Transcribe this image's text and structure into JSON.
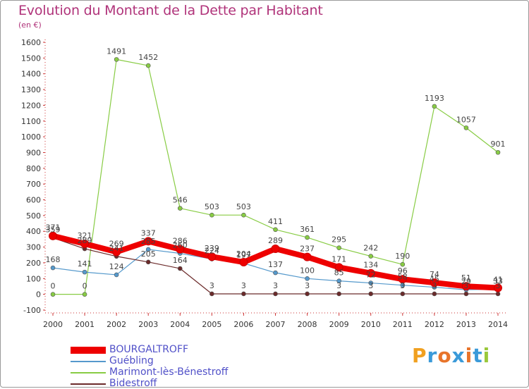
{
  "title": "Evolution du Montant de la Dette par Habitant",
  "subtitle": "(en €)",
  "logo": {
    "text": "Proxiti",
    "colors": [
      "#f0a020",
      "#3a9ad9",
      "#e8742a",
      "#3a9ad9",
      "#e8742a",
      "#3a9ad9",
      "#9ac83a"
    ]
  },
  "chart_data": {
    "type": "line",
    "title": "Evolution du Montant de la Dette par Habitant",
    "ylabel": "(en €)",
    "x": [
      "2000",
      "2001",
      "2002",
      "2003",
      "2004",
      "2005",
      "2006",
      "2007",
      "2008",
      "2009",
      "2010",
      "2011",
      "2012",
      "2013",
      "2014"
    ],
    "ylim": [
      -100,
      1600
    ],
    "yticks": [
      -100,
      0,
      100,
      200,
      300,
      400,
      500,
      600,
      700,
      800,
      900,
      1000,
      1100,
      1200,
      1300,
      1400,
      1500,
      1600
    ],
    "grid": false,
    "legend_position": "bottom-left",
    "series": [
      {
        "name": "BOURGALTROFF",
        "color": "#ee0000",
        "values": [
          371,
          321,
          269,
          337,
          286,
          239,
          204,
          289,
          237,
          171,
          134,
          96,
          74,
          51,
          41
        ],
        "labels": [
          "371",
          "321",
          "269",
          "337",
          "286",
          "239",
          "204",
          "289",
          "237",
          "171",
          "134",
          "96",
          "74",
          "51",
          "41"
        ]
      },
      {
        "name": "Guébling",
        "color": "#5599cc",
        "values": [
          168,
          141,
          124,
          285,
          260,
          224,
          197,
          137,
          100,
          85,
          72,
          58,
          45,
          29,
          33
        ],
        "labels": [
          "168",
          "141",
          "124",
          "285",
          "260",
          "224",
          "197",
          "137",
          "100",
          "85",
          "72",
          "58",
          "45",
          "29",
          "33"
        ]
      },
      {
        "name": "Marimont-lès-Bénestroff",
        "color": "#88cc44",
        "values": [
          0,
          0,
          1491,
          1452,
          546,
          503,
          503,
          411,
          361,
          295,
          242,
          190,
          1193,
          1057,
          901
        ],
        "labels": [
          "0",
          "0",
          "1491",
          "1452",
          "546",
          "503",
          "503",
          "411",
          "361",
          "295",
          "242",
          "190",
          "1193",
          "1057",
          "901"
        ]
      },
      {
        "name": "Bidestroff",
        "color": "#6b2a2a",
        "values": [
          359,
          289,
          241,
          205,
          164,
          3,
          3,
          3,
          3,
          3,
          3,
          3,
          3,
          3,
          3
        ],
        "labels": [
          "359",
          "289",
          "241",
          "205",
          "164",
          "3",
          "3",
          "3",
          "3",
          "3",
          "3",
          "3",
          "3",
          "3",
          "3"
        ]
      }
    ]
  }
}
